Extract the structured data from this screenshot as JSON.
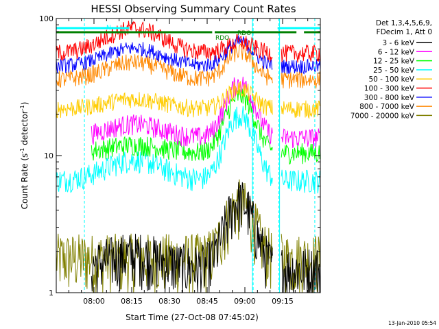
{
  "chart_data": {
    "type": "line",
    "title": "HESSI Observing Summary Count Rates",
    "xlabel": "Start Time (27-Oct-08 07:45:02)",
    "ylabel_main": "Count Rate (s",
    "ylabel_sup1": "-1",
    "ylabel_mid": " detector",
    "ylabel_sup2": "-1",
    "ylabel_end": ")",
    "y_scale": "log",
    "ylim": [
      1,
      100
    ],
    "xlim_min": [
      0,
      105
    ],
    "y_ticks": [
      {
        "value": 1,
        "label": "1"
      },
      {
        "value": 10,
        "label": "10"
      },
      {
        "value": 100,
        "label": "100"
      }
    ],
    "x_ticks": [
      {
        "value": 15,
        "label": "08:00"
      },
      {
        "value": 30,
        "label": "08:15"
      },
      {
        "value": 45,
        "label": "08:30"
      },
      {
        "value": 60,
        "label": "08:45"
      },
      {
        "value": 75,
        "label": "09:00"
      },
      {
        "value": 90,
        "label": "09:15"
      }
    ],
    "legend_header": [
      "Det 1,3,4,5,6,9,",
      "FDecim 1, Att 0"
    ],
    "series": [
      {
        "name": "3 - 6 keV",
        "color": "#000000"
      },
      {
        "name": "6 - 12 keV",
        "color": "#ff00ff"
      },
      {
        "name": "12 - 25 keV",
        "color": "#00ff00"
      },
      {
        "name": "25 - 50 keV",
        "color": "#00ffff"
      },
      {
        "name": "50 - 100 keV",
        "color": "#ffcc00"
      },
      {
        "name": "100 - 300 keV",
        "color": "#ff0000"
      },
      {
        "name": "300 - 800 keV",
        "color": "#0000ff"
      },
      {
        "name": "800 - 7000 keV",
        "color": "#ff8800"
      },
      {
        "name": "7000 - 20000 keV",
        "color": "#808000"
      }
    ],
    "annotations": [
      {
        "text": "N",
        "color": "#00ffff"
      },
      {
        "text": "RDO",
        "color": "#008000"
      },
      {
        "text": "RDO",
        "color": "#008000"
      }
    ],
    "timestamp": "13-Jan-2010 05:54"
  }
}
